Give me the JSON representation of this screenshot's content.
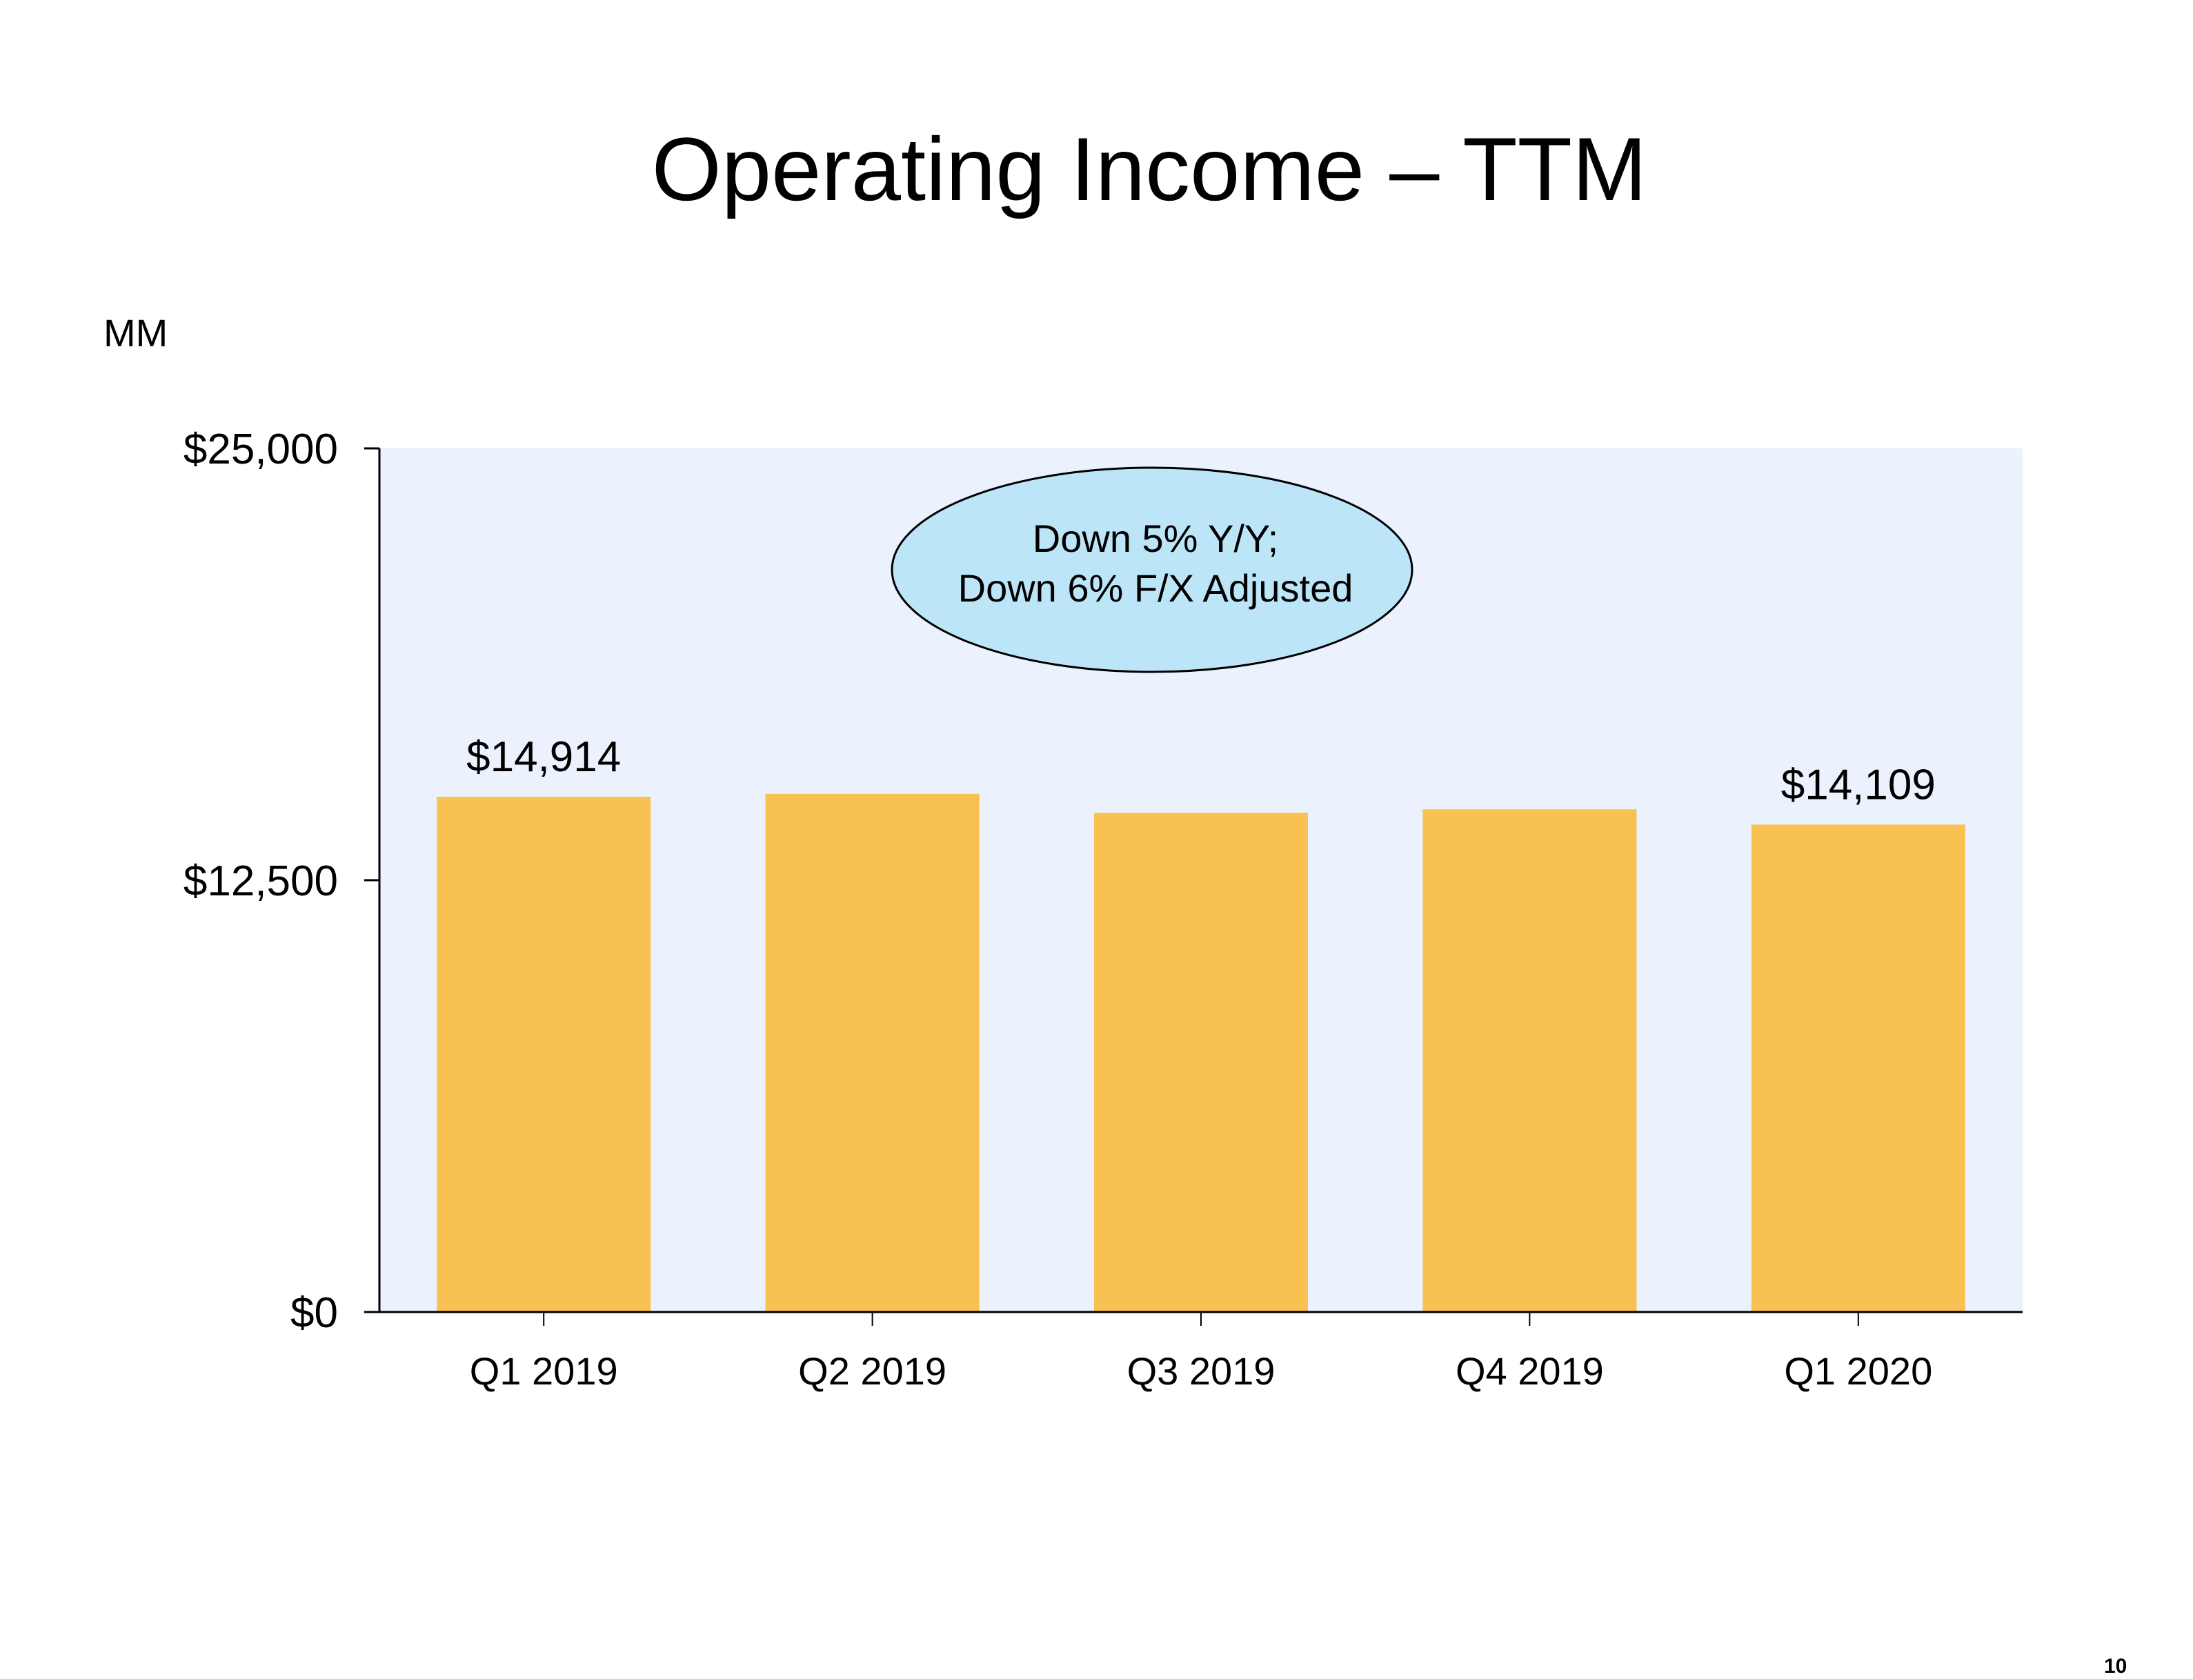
{
  "slide": {
    "title": "Operating Income – TTM",
    "unit": "MM",
    "page_number": "10"
  },
  "callout": {
    "line1": "Down 5% Y/Y;",
    "line2": "Down 6% F/X Adjusted"
  },
  "colors": {
    "bar": "#F9C152",
    "plot_background": "#EBF2FD",
    "callout_fill": "#BDE5F8",
    "axis": "#000000"
  },
  "chart_data": {
    "type": "bar",
    "title": "Operating Income – TTM",
    "ylabel": "MM",
    "xlabel": "",
    "categories": [
      "Q1 2019",
      "Q2 2019",
      "Q3 2019",
      "Q4 2019",
      "Q1 2020"
    ],
    "values": [
      14914,
      15000,
      14450,
      14550,
      14109
    ],
    "data_labels": [
      {
        "index": 0,
        "text": "$14,914"
      },
      {
        "index": 4,
        "text": "$14,109"
      }
    ],
    "ylim": [
      0,
      25000
    ],
    "yticks": [
      0,
      12500,
      25000
    ],
    "ytick_labels": [
      "$0",
      "$12,500",
      "$25,000"
    ],
    "grid": false,
    "legend": "none"
  }
}
